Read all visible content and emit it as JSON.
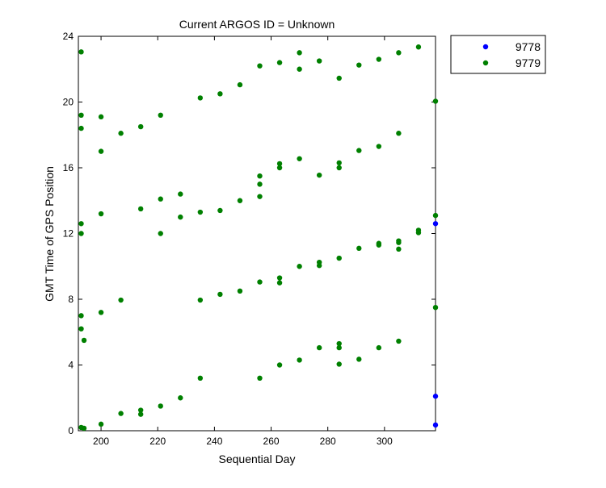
{
  "chart_data": {
    "type": "scatter",
    "title": "Current ARGOS ID = Unknown",
    "xlabel": "Sequential Day",
    "ylabel": "GMT Time of GPS Position",
    "xlim": [
      192,
      318
    ],
    "ylim": [
      0,
      24
    ],
    "x_ticks": [
      200,
      220,
      240,
      260,
      280,
      300
    ],
    "y_ticks": [
      0,
      4,
      8,
      12,
      16,
      20,
      24
    ],
    "x_tick_labels": [
      "200",
      "220",
      "240",
      "260",
      "280",
      "300"
    ],
    "y_tick_labels": [
      "0",
      "4",
      "8",
      "12",
      "16",
      "20",
      "24"
    ],
    "grid": false,
    "legend_position": "outside-top-right",
    "series": [
      {
        "name": "9778",
        "color": "#0000ff",
        "points": [
          [
            318,
            0.35
          ],
          [
            318,
            2.1
          ],
          [
            318,
            12.6
          ]
        ]
      },
      {
        "name": "9779",
        "color": "#008000",
        "points": [
          [
            193,
            23.05
          ],
          [
            193,
            19.2
          ],
          [
            193,
            18.4
          ],
          [
            193,
            12.6
          ],
          [
            193,
            12.0
          ],
          [
            193,
            7.0
          ],
          [
            193,
            6.2
          ],
          [
            193,
            0.2
          ],
          [
            194,
            5.5
          ],
          [
            194,
            0.15
          ],
          [
            200,
            19.1
          ],
          [
            200,
            17.0
          ],
          [
            200,
            13.2
          ],
          [
            200,
            7.2
          ],
          [
            200,
            0.4
          ],
          [
            207,
            18.1
          ],
          [
            207,
            7.95
          ],
          [
            207,
            1.05
          ],
          [
            214,
            18.5
          ],
          [
            214,
            13.5
          ],
          [
            214,
            1.25
          ],
          [
            214,
            1.0
          ],
          [
            221,
            19.2
          ],
          [
            221,
            14.1
          ],
          [
            221,
            12.0
          ],
          [
            221,
            1.5
          ],
          [
            228,
            14.4
          ],
          [
            228,
            13.0
          ],
          [
            228,
            2.0
          ],
          [
            235,
            20.25
          ],
          [
            235,
            13.3
          ],
          [
            235,
            7.95
          ],
          [
            235,
            3.2
          ],
          [
            242,
            20.5
          ],
          [
            242,
            13.4
          ],
          [
            242,
            8.3
          ],
          [
            249,
            21.05
          ],
          [
            249,
            14.0
          ],
          [
            249,
            8.5
          ],
          [
            256,
            22.2
          ],
          [
            256,
            15.5
          ],
          [
            256,
            15.0
          ],
          [
            256,
            14.25
          ],
          [
            256,
            9.05
          ],
          [
            256,
            3.2
          ],
          [
            263,
            22.4
          ],
          [
            263,
            16.25
          ],
          [
            263,
            16.0
          ],
          [
            263,
            9.3
          ],
          [
            263,
            9.0
          ],
          [
            263,
            4.0
          ],
          [
            270,
            23.0
          ],
          [
            270,
            22.0
          ],
          [
            270,
            16.55
          ],
          [
            270,
            10.0
          ],
          [
            270,
            4.3
          ],
          [
            277,
            22.5
          ],
          [
            277,
            15.55
          ],
          [
            277,
            10.25
          ],
          [
            277,
            10.05
          ],
          [
            277,
            5.05
          ],
          [
            284,
            21.45
          ],
          [
            284,
            16.3
          ],
          [
            284,
            16.0
          ],
          [
            284,
            10.5
          ],
          [
            284,
            5.3
          ],
          [
            284,
            5.05
          ],
          [
            284,
            4.05
          ],
          [
            291,
            22.25
          ],
          [
            291,
            17.05
          ],
          [
            291,
            11.1
          ],
          [
            291,
            4.35
          ],
          [
            298,
            22.6
          ],
          [
            298,
            17.3
          ],
          [
            298,
            11.4
          ],
          [
            298,
            11.3
          ],
          [
            298,
            5.05
          ],
          [
            305,
            23.0
          ],
          [
            305,
            18.1
          ],
          [
            305,
            11.55
          ],
          [
            305,
            11.45
          ],
          [
            305,
            11.05
          ],
          [
            305,
            5.45
          ],
          [
            312,
            23.35
          ],
          [
            312,
            12.2
          ],
          [
            312,
            12.05
          ],
          [
            318,
            20.05
          ],
          [
            318,
            13.1
          ],
          [
            318,
            7.5
          ]
        ]
      }
    ]
  }
}
